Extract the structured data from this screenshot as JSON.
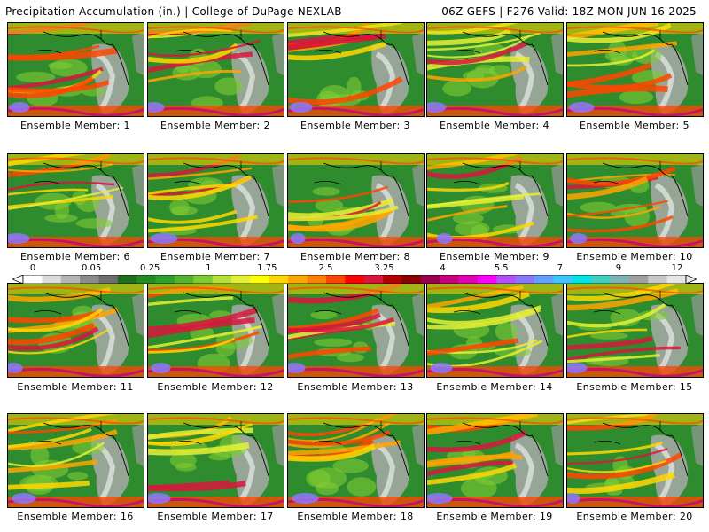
{
  "header": {
    "left_title": "Precipitation Accumulation (in.) | College of DuPage NEXLAB",
    "right_title": "06Z GEFS | F276 Valid: 18Z MON JUN 16 2025"
  },
  "colorbar": {
    "labels": [
      "0",
      "0.05",
      "0.25",
      "1",
      "1.75",
      "2.5",
      "3.25",
      "4",
      "5.5",
      "7",
      "9",
      "12"
    ],
    "colors": [
      "#ffffff",
      "#dcdcdc",
      "#b4b4b4",
      "#8c8c8c",
      "#6e6e6e",
      "#1e6e1e",
      "#228b22",
      "#2ea02e",
      "#55b42d",
      "#7fcc33",
      "#b4e033",
      "#e6f032",
      "#ffff00",
      "#ffd700",
      "#ffa500",
      "#ff7f00",
      "#ff4500",
      "#ff0000",
      "#dc143c",
      "#b40000",
      "#8b0000",
      "#9b0050",
      "#c8007d",
      "#e600b4",
      "#ff00ff",
      "#b450ff",
      "#8c78ff",
      "#64a0ff",
      "#3cc8ff",
      "#00e6e6",
      "#40d0c0",
      "#80b4b4",
      "#a0a0a0",
      "#c8c8c8",
      "#e6e6e6"
    ]
  },
  "members": [
    {
      "caption": "Ensemble Member: 1"
    },
    {
      "caption": "Ensemble Member: 2"
    },
    {
      "caption": "Ensemble Member: 3"
    },
    {
      "caption": "Ensemble Member: 4"
    },
    {
      "caption": "Ensemble Member: 5"
    },
    {
      "caption": "Ensemble Member: 6"
    },
    {
      "caption": "Ensemble Member: 7"
    },
    {
      "caption": "Ensemble Member: 8"
    },
    {
      "caption": "Ensemble Member: 9"
    },
    {
      "caption": "Ensemble Member: 10"
    },
    {
      "caption": "Ensemble Member: 11"
    },
    {
      "caption": "Ensemble Member: 12"
    },
    {
      "caption": "Ensemble Member: 13"
    },
    {
      "caption": "Ensemble Member: 14"
    },
    {
      "caption": "Ensemble Member: 15"
    },
    {
      "caption": "Ensemble Member: 16"
    },
    {
      "caption": "Ensemble Member: 17"
    },
    {
      "caption": "Ensemble Member: 18"
    },
    {
      "caption": "Ensemble Member: 19"
    },
    {
      "caption": "Ensemble Member: 20"
    }
  ]
}
